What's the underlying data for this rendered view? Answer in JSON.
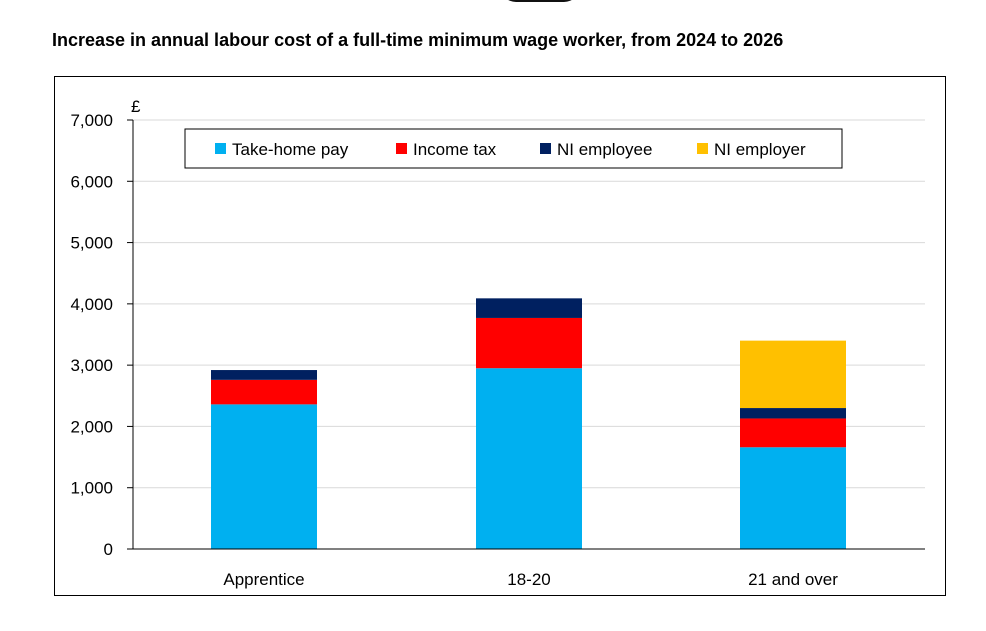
{
  "chart_data": {
    "type": "bar",
    "stacked": true,
    "title": "Increase in annual labour cost of a full-time minimum wage worker, from 2024 to 2026",
    "ylabel": "£",
    "xlabel": "",
    "ylim": [
      0,
      7000
    ],
    "yticks": [
      0,
      1000,
      2000,
      3000,
      4000,
      5000,
      6000,
      7000
    ],
    "ytick_labels": [
      "0",
      "1,000",
      "2,000",
      "3,000",
      "4,000",
      "5,000",
      "6,000",
      "7,000"
    ],
    "grid": true,
    "legend": "top",
    "categories": [
      "Apprentice",
      "18-20",
      "21 and over"
    ],
    "series": [
      {
        "name": "Take-home pay",
        "color": "#00B0F0",
        "values": [
          2360,
          2950,
          1660
        ]
      },
      {
        "name": "Income tax",
        "color": "#FF0000",
        "values": [
          400,
          820,
          470
        ]
      },
      {
        "name": "NI employee",
        "color": "#002060",
        "values": [
          160,
          320,
          170
        ]
      },
      {
        "name": "NI employer",
        "color": "#FFC000",
        "values": [
          0,
          0,
          1100
        ]
      }
    ]
  }
}
